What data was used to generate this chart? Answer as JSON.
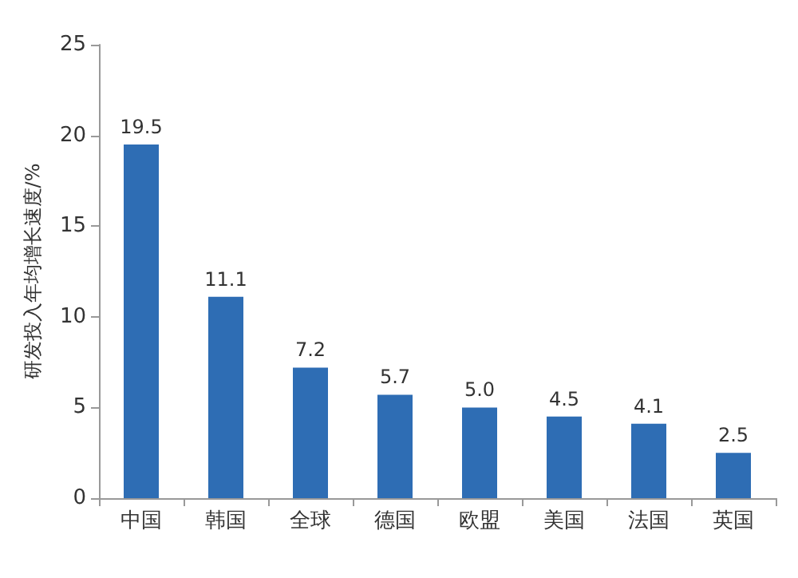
{
  "chart_data": {
    "type": "bar",
    "ylabel": "研发投入年均增长速度/%",
    "categories": [
      "中国",
      "韩国",
      "全球",
      "德国",
      "欧盟",
      "美国",
      "法国",
      "英国"
    ],
    "values": [
      19.5,
      11.1,
      7.2,
      5.7,
      5.0,
      4.5,
      4.1,
      2.5
    ],
    "value_labels": [
      "19.5",
      "11.1",
      "7.2",
      "5.7",
      "5.0",
      "4.5",
      "4.1",
      "2.5"
    ],
    "color": "#2e6db4",
    "ylim": [
      0,
      25
    ],
    "yticks": [
      0,
      5,
      10,
      15,
      20,
      25
    ]
  }
}
